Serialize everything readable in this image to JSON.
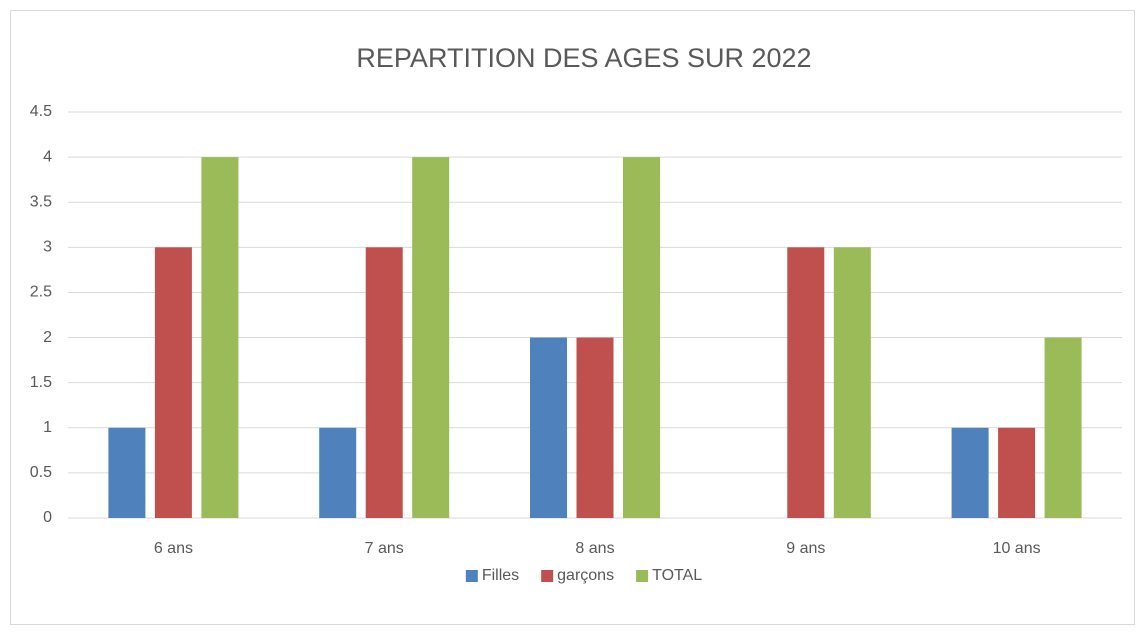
{
  "chart_data": {
    "type": "bar",
    "title": "REPARTITION DES AGES SUR 2022",
    "categories": [
      "6 ans",
      "7 ans",
      "8 ans",
      "9 ans",
      "10 ans"
    ],
    "series": [
      {
        "name": "Filles",
        "color": "#4f81bd",
        "values": [
          1,
          1,
          2,
          0,
          1
        ]
      },
      {
        "name": "garçons",
        "color": "#c0504d",
        "values": [
          3,
          3,
          2,
          3,
          1
        ]
      },
      {
        "name": "TOTAL",
        "color": "#9bbb59",
        "values": [
          4,
          4,
          4,
          3,
          2
        ]
      }
    ],
    "ylim": [
      0,
      4.5
    ],
    "yticks": [
      0,
      0.5,
      1,
      1.5,
      2,
      2.5,
      3,
      3.5,
      4,
      4.5
    ],
    "grid": true,
    "legend": "bottom"
  }
}
